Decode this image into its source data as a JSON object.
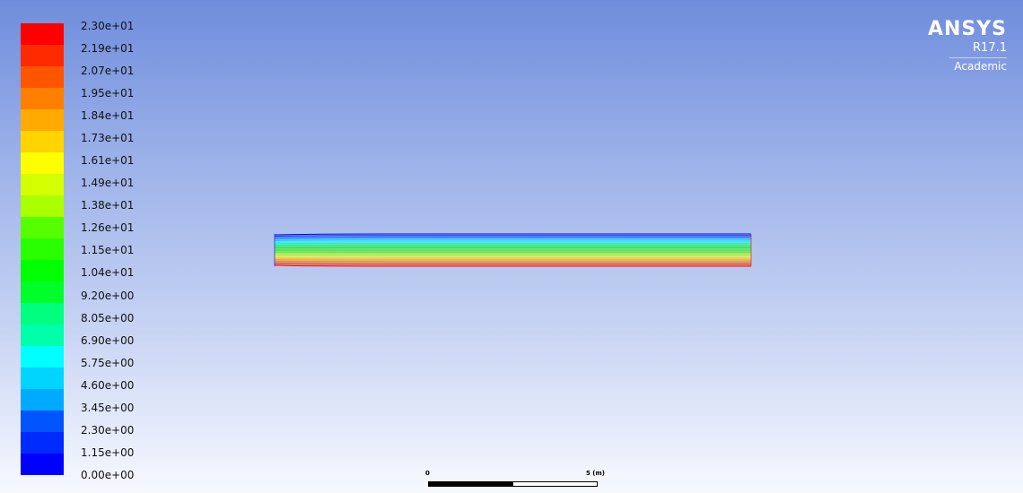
{
  "legend": {
    "labels": [
      "2.30e+01",
      "2.19e+01",
      "2.07e+01",
      "1.95e+01",
      "1.84e+01",
      "1.73e+01",
      "1.61e+01",
      "1.49e+01",
      "1.38e+01",
      "1.26e+01",
      "1.15e+01",
      "1.04e+01",
      "9.20e+00",
      "8.05e+00",
      "6.90e+00",
      "5.75e+00",
      "4.60e+00",
      "3.45e+00",
      "2.30e+00",
      "1.15e+00",
      "0.00e+00"
    ],
    "colors": [
      "#ff0000",
      "#ff2a00",
      "#ff5500",
      "#ff7f00",
      "#ffaa00",
      "#ffd400",
      "#ffff00",
      "#d4ff00",
      "#aaff00",
      "#55ff00",
      "#2aff00",
      "#00ff00",
      "#00ff2a",
      "#00ff7f",
      "#00ffaa",
      "#00ffff",
      "#00d4ff",
      "#00aaff",
      "#0055ff",
      "#002aff",
      "#0000ff"
    ]
  },
  "logo": {
    "name": "ANSYS",
    "version": "R17.1",
    "edition": "Academic"
  },
  "scale_bar": {
    "start_label": "0",
    "end_label": "5 (m)",
    "segment_colors": [
      "#000000",
      "#ffffff"
    ]
  }
}
